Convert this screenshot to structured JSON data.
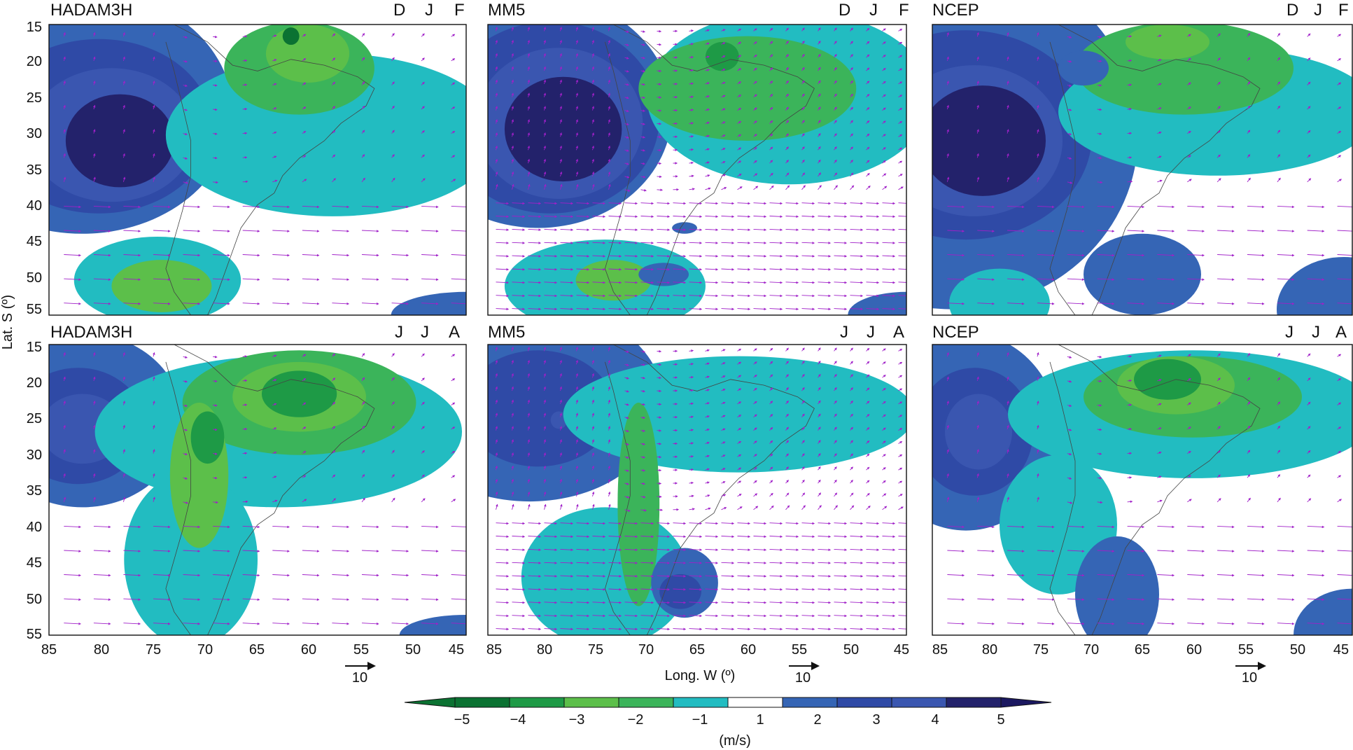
{
  "figure": {
    "axis_labels": {
      "y": "Lat. S (º)",
      "x": "Long. W (º)"
    },
    "lat_ticks": [
      "15",
      "20",
      "25",
      "30",
      "35",
      "40",
      "45",
      "50",
      "55"
    ],
    "lon_ticks": [
      "85",
      "80",
      "75",
      "70",
      "65",
      "60",
      "55",
      "50",
      "45"
    ],
    "vector_ref_label": "10",
    "colorbar": {
      "labels": [
        "−5",
        "−4",
        "−3",
        "−2",
        "−1",
        "1",
        "2",
        "3",
        "4",
        "5"
      ],
      "unit": "(m/s)",
      "colors": [
        "#0b7232",
        "#1e9a46",
        "#5cbf4a",
        "#3bb45a",
        "#22bcc1",
        "#ffffff",
        "#3565b5",
        "#2f4aa6",
        "#3a56b0",
        "#23226b",
        "#1b1860"
      ]
    },
    "panels": [
      {
        "model": "HADAM3H",
        "season": [
          "D",
          "J",
          "F"
        ]
      },
      {
        "model": "MM5",
        "season": [
          "D",
          "J",
          "F"
        ]
      },
      {
        "model": "NCEP",
        "season": [
          "D",
          "J",
          "F"
        ]
      },
      {
        "model": "HADAM3H",
        "season": [
          "J",
          "J",
          "A"
        ]
      },
      {
        "model": "MM5",
        "season": [
          "J",
          "J",
          "A"
        ]
      },
      {
        "model": "NCEP",
        "season": [
          "J",
          "J",
          "A"
        ]
      }
    ]
  }
}
